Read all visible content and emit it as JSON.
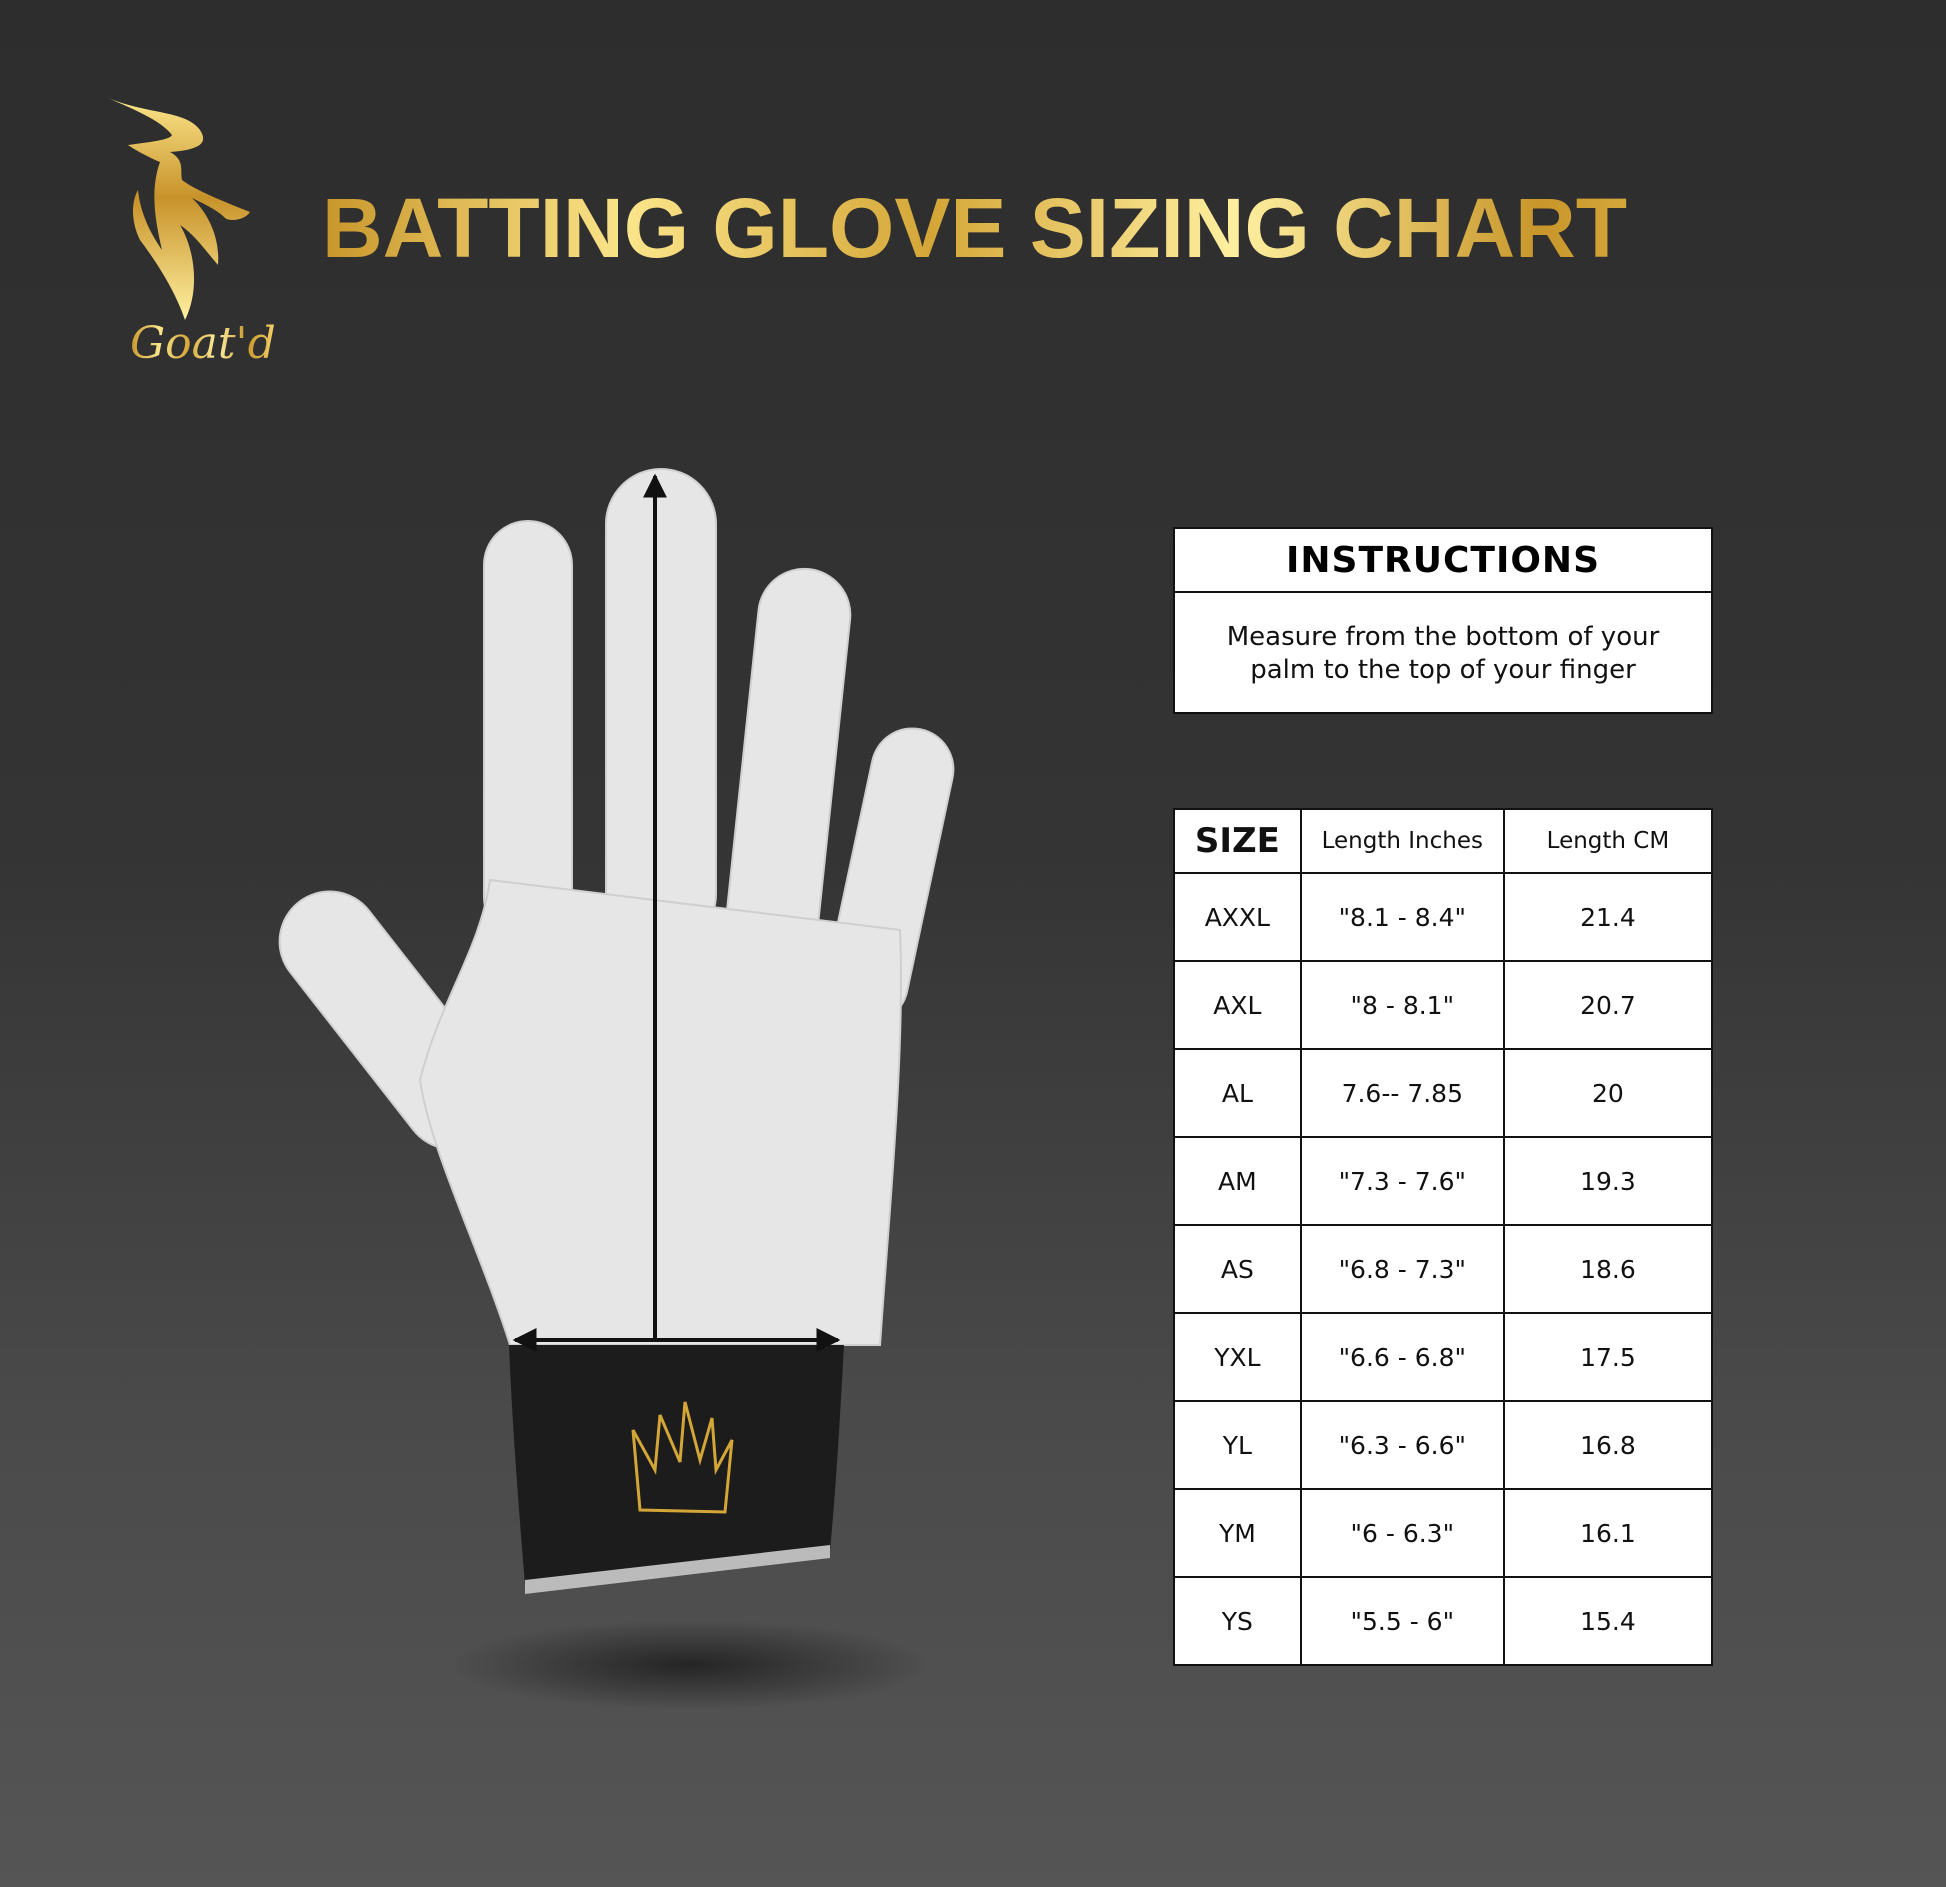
{
  "header": {
    "title": "BATTING GLOVE SIZING CHART",
    "brand": "Goat'd"
  },
  "colors": {
    "gold": "#e0b84a",
    "background": "#2e2e2e",
    "glove": "#e6e6e6",
    "cuff": "#1c1c1c"
  },
  "instructions": {
    "heading": "INSTRUCTIONS",
    "text": "Measure from the bottom of your palm to the top of your finger"
  },
  "size_table": {
    "columns": [
      "SIZE",
      "Length Inches",
      "Length CM"
    ],
    "rows": [
      {
        "size": "AXXL",
        "inches": "\"8.1 - 8.4\"",
        "cm": "21.4"
      },
      {
        "size": "AXL",
        "inches": "\"8 - 8.1\"",
        "cm": "20.7"
      },
      {
        "size": "AL",
        "inches": "7.6-- 7.85",
        "cm": "20"
      },
      {
        "size": "AM",
        "inches": "\"7.3 - 7.6\"",
        "cm": "19.3"
      },
      {
        "size": "AS",
        "inches": "\"6.8 - 7.3\"",
        "cm": "18.6"
      },
      {
        "size": "YXL",
        "inches": "\"6.6 - 6.8\"",
        "cm": "17.5"
      },
      {
        "size": "YL",
        "inches": "\"6.3 - 6.6\"",
        "cm": "16.8"
      },
      {
        "size": "YM",
        "inches": "\"6 - 6.3\"",
        "cm": "16.1"
      },
      {
        "size": "YS",
        "inches": "\"5.5 - 6\"",
        "cm": "15.4"
      }
    ]
  },
  "illustration": {
    "icon": "glove-measurement-diagram"
  }
}
